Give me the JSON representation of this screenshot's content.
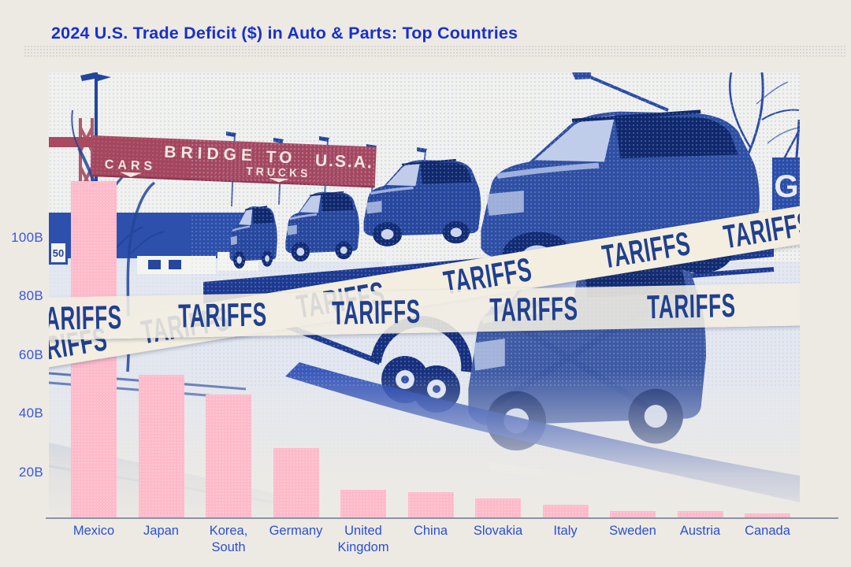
{
  "title": "2024 U.S. Trade Deficit ($) in Auto & Parts: Top Countries",
  "tape": {
    "label": "TARIFFS"
  },
  "banner": {
    "cars": "CARS",
    "bridge": "BRIDGE",
    "to": "TO",
    "usa": "U.S.A.",
    "trucks": "TRUCKS"
  },
  "signs": {
    "speed_limit": "50",
    "g_sign": "G"
  },
  "chart_data": {
    "type": "bar",
    "title": "2024 U.S. Trade Deficit ($) in Auto & Parts: Top Countries",
    "categories": [
      "Mexico",
      "Japan",
      "Korea,\nSouth",
      "Germany",
      "United\nKingdom",
      "China",
      "Slovakia",
      "Italy",
      "Sweden",
      "Austria",
      "Canada"
    ],
    "values": [
      120,
      51,
      44,
      25,
      10,
      9.3,
      7,
      4.8,
      2.6,
      2.5,
      1.8
    ],
    "unit": "billion USD",
    "yticks": [
      20,
      40,
      60,
      80,
      100
    ],
    "ytick_labels": [
      "20B",
      "40B",
      "60B",
      "80B",
      "100B"
    ],
    "ylim": [
      0,
      125
    ],
    "grid": false,
    "legend": null,
    "bar_color": "#f5a9bd",
    "label_color": "#2a4fd6"
  },
  "colors": {
    "background": "#edeae4",
    "title_blue": "#1830cf",
    "photo_blue": "#27489e",
    "tape_cream": "#f3eee0",
    "tape_text": "#20408f",
    "banner_red": "#a5455e",
    "bar_pink": "#f5a9bd"
  }
}
